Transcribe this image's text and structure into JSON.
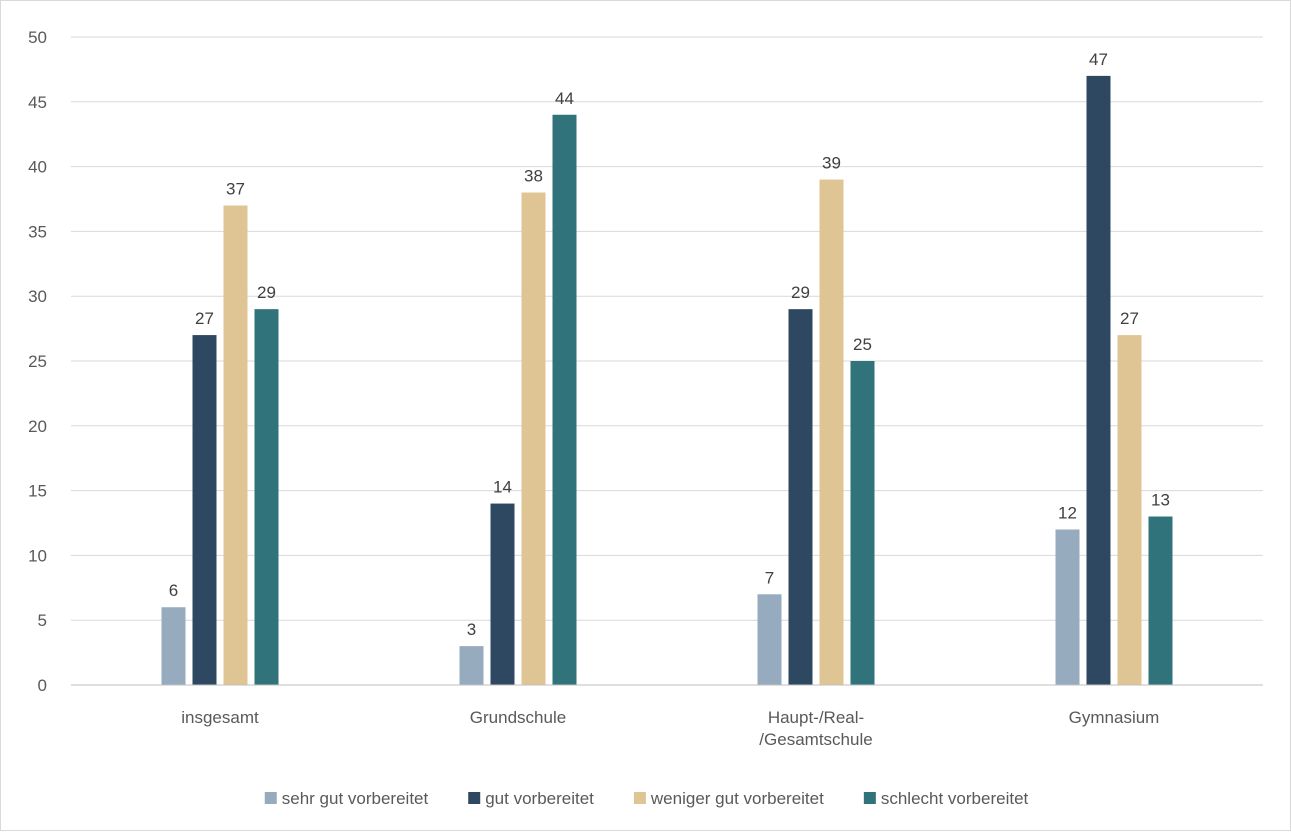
{
  "chart_data": {
    "type": "bar",
    "categories": [
      "insgesamt",
      "Grundschule",
      "Haupt-/Real-/Gesamtschule",
      "Gymnasium"
    ],
    "category_lines": [
      [
        "insgesamt"
      ],
      [
        "Grundschule"
      ],
      [
        "Haupt-/Real-",
        "/Gesamtschule"
      ],
      [
        "Gymnasium"
      ]
    ],
    "series": [
      {
        "name": "sehr gut vorbereitet",
        "color": "#97abbf",
        "values": [
          6,
          3,
          7,
          12
        ]
      },
      {
        "name": "gut vorbereitet",
        "color": "#2e4862",
        "values": [
          27,
          14,
          29,
          47
        ]
      },
      {
        "name": "weniger gut vorbereitet",
        "color": "#e0c594",
        "values": [
          37,
          38,
          39,
          27
        ]
      },
      {
        "name": "schlecht vorbereitet",
        "color": "#30737a",
        "values": [
          29,
          44,
          25,
          13
        ]
      }
    ],
    "title": "",
    "xlabel": "",
    "ylabel": "",
    "ylim": [
      0,
      50
    ],
    "yticks": [
      0,
      5,
      10,
      15,
      20,
      25,
      30,
      35,
      40,
      45,
      50
    ],
    "grid": true,
    "legend_position": "bottom",
    "data_labels": true
  }
}
